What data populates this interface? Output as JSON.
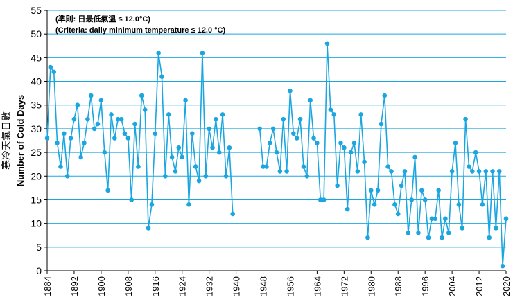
{
  "chart_data": {
    "type": "line",
    "title": "",
    "annotations": [
      "(準則: 日最低氣溫 ≤ 12.0°C)",
      "(Criteria: daily minimum temperature ≤ 12.0 °C)"
    ],
    "ylabel_zh": "寒冷天氣日數",
    "ylabel_en": "Number of Cold Days",
    "xlabel": "",
    "xlim": [
      1884,
      2020
    ],
    "ylim": [
      0,
      55
    ],
    "xticks": [
      1884,
      1892,
      1900,
      1908,
      1916,
      1924,
      1932,
      1940,
      1948,
      1956,
      1964,
      1972,
      1980,
      1988,
      1996,
      2004,
      2012,
      2020
    ],
    "yticks": [
      0,
      5,
      10,
      15,
      20,
      25,
      30,
      35,
      40,
      45,
      50,
      55
    ],
    "grid": "horizontal",
    "colors": {
      "series": "#1ba6e0",
      "grid": "#1ba6e0",
      "axis": "#000000"
    },
    "series": [
      {
        "name": "",
        "x": [
          1884,
          1885,
          1886,
          1887,
          1888,
          1889,
          1890,
          1891,
          1892,
          1893,
          1894,
          1895,
          1896,
          1897,
          1898,
          1899,
          1900,
          1901,
          1902,
          1903,
          1904,
          1905,
          1906,
          1907,
          1908,
          1909,
          1910,
          1911,
          1912,
          1913,
          1914,
          1915,
          1916,
          1917,
          1918,
          1919,
          1920,
          1921,
          1922,
          1923,
          1924,
          1925,
          1926,
          1927,
          1928,
          1929,
          1930,
          1931,
          1932,
          1933,
          1934,
          1935,
          1936,
          1937,
          1938,
          1939,
          1940,
          null,
          1947,
          1948,
          1949,
          1950,
          1951,
          1952,
          1953,
          1954,
          1955,
          1956,
          1957,
          1958,
          1959,
          1960,
          1961,
          1962,
          1963,
          1964,
          1965,
          1966,
          1967,
          1968,
          1969,
          1970,
          1971,
          1972,
          1973,
          1974,
          1975,
          1976,
          1977,
          1978,
          1979,
          1980,
          1981,
          1982,
          1983,
          1984,
          1985,
          1986,
          1987,
          1988,
          1989,
          1990,
          1991,
          1992,
          1993,
          1994,
          1995,
          1996,
          1997,
          1998,
          1999,
          2000,
          2001,
          2002,
          2003,
          2004,
          2005,
          2006,
          2007,
          2008,
          2009,
          2010,
          2011,
          2012,
          2013,
          2014,
          2015,
          2016,
          2017,
          2018,
          2019,
          2020
        ],
        "y": [
          28,
          43,
          42,
          27,
          22,
          29,
          20,
          28,
          32,
          35,
          24,
          27,
          32,
          37,
          30,
          31,
          36,
          25,
          17,
          33,
          28,
          32,
          32,
          29,
          28,
          15,
          31,
          22,
          37,
          34,
          9,
          14,
          29,
          46,
          41,
          20,
          33,
          24,
          21,
          26,
          24,
          36,
          14,
          29,
          22,
          19,
          46,
          20,
          30,
          26,
          32,
          25,
          33,
          20,
          26,
          12,
          null,
          null,
          30,
          22,
          22,
          27,
          30,
          25,
          21,
          32,
          21,
          38,
          29,
          28,
          32,
          22,
          20,
          36,
          28,
          27,
          15,
          15,
          48,
          34,
          33,
          18,
          27,
          26,
          13,
          25,
          27,
          21,
          33,
          23,
          7,
          17,
          14,
          17,
          31,
          37,
          22,
          21,
          14,
          12,
          18,
          21,
          8,
          15,
          24,
          8,
          17,
          15,
          7,
          11,
          11,
          17,
          7,
          11,
          8,
          21,
          27,
          14,
          9,
          32,
          22,
          21,
          25,
          21,
          14,
          21,
          7,
          21,
          9,
          21,
          1,
          11
        ]
      }
    ]
  }
}
